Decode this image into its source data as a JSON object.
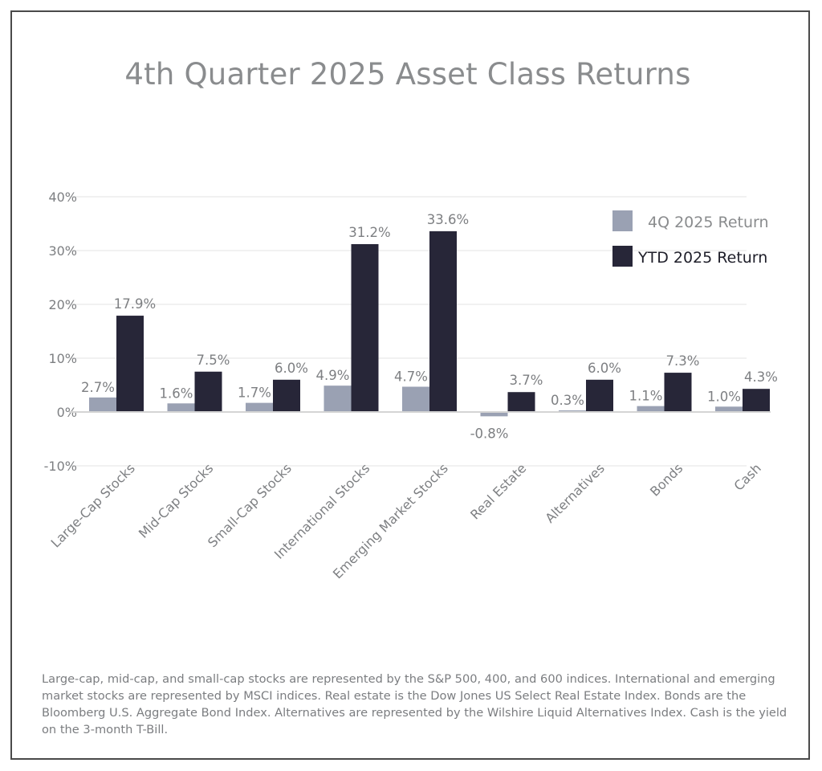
{
  "chart_data": {
    "type": "bar",
    "title": "4th Quarter 2025 Asset Class Returns",
    "categories": [
      "Large-Cap Stocks",
      "Mid-Cap Stocks",
      "Small-Cap Stocks",
      "International Stocks",
      "Emerging Market Stocks",
      "Real Estate",
      "Alternatives",
      "Bonds",
      "Cash"
    ],
    "series": [
      {
        "name": "4Q 2025 Return",
        "color": "#9aa1b3",
        "values": [
          2.7,
          1.6,
          1.7,
          4.9,
          4.7,
          -0.8,
          0.3,
          1.1,
          1.0
        ],
        "labels": [
          "2.7%",
          "1.6%",
          "1.7%",
          "4.9%",
          "4.7%",
          "-0.8%",
          "0.3%",
          "1.1%",
          "1.0%"
        ]
      },
      {
        "name": "YTD 2025 Return",
        "color": "#272638",
        "values": [
          17.9,
          7.5,
          6.0,
          31.2,
          33.6,
          3.7,
          6.0,
          7.3,
          4.3
        ],
        "labels": [
          "17.9%",
          "7.5%",
          "6.0%",
          "31.2%",
          "33.6%",
          "3.7%",
          "6.0%",
          "7.3%",
          "4.3%"
        ]
      }
    ],
    "ylim": [
      -10,
      40
    ],
    "yticks": [
      40,
      30,
      20,
      10,
      0,
      -10
    ],
    "ytick_labels": [
      "40%",
      "30%",
      "20%",
      "10%",
      "0%",
      "-10%"
    ],
    "grid": true,
    "legend_position": "top-right"
  },
  "footnote": "Large-cap, mid-cap, and small-cap stocks are represented by the S&P 500, 400, and 600 indices. International and emerging market stocks are represented by MSCI indices. Real estate is the Dow Jones US Select Real Estate Index. Bonds are the Bloomberg U.S. Aggregate Bond Index. Alternatives are represented by the Wilshire Liquid Alternatives Index. Cash is the yield on the 3-month T-Bill."
}
